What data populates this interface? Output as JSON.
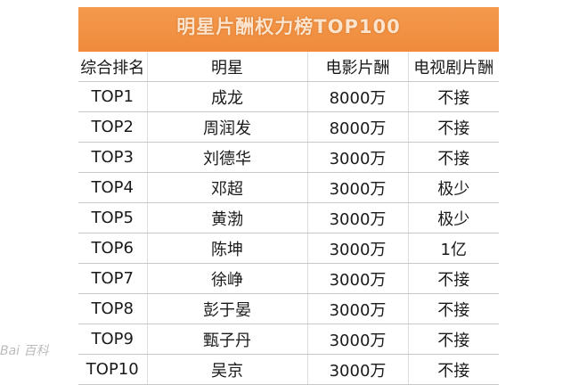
{
  "title": "明星片酬权力榜TOP100",
  "headers": [
    "综合排名",
    "明星",
    "电影片酬",
    "电视剧片酬"
  ],
  "rows": [
    [
      "TOP1",
      "成龙",
      "8000万",
      "不接"
    ],
    [
      "TOP2",
      "周润发",
      "8000万",
      "不接"
    ],
    [
      "TOP3",
      "刘德华",
      "3000万",
      "不接"
    ],
    [
      "TOP4",
      "邓超",
      "3000万",
      "极少"
    ],
    [
      "TOP5",
      "黄渤",
      "3000万",
      "极少"
    ],
    [
      "TOP6",
      "陈坤",
      "3000万",
      "1亿"
    ],
    [
      "TOP7",
      "徐峥",
      "3000万",
      "不接"
    ],
    [
      "TOP8",
      "彭于晏",
      "3000万",
      "不接"
    ],
    [
      "TOP9",
      "甄子丹",
      "3000万",
      "不接"
    ],
    [
      "TOP10",
      "吴京",
      "3000万",
      "不接"
    ]
  ],
  "watermark": "Bai 百科",
  "colors": {
    "title_bg": "#f08a3a",
    "title_text": "#fbe3cc"
  }
}
